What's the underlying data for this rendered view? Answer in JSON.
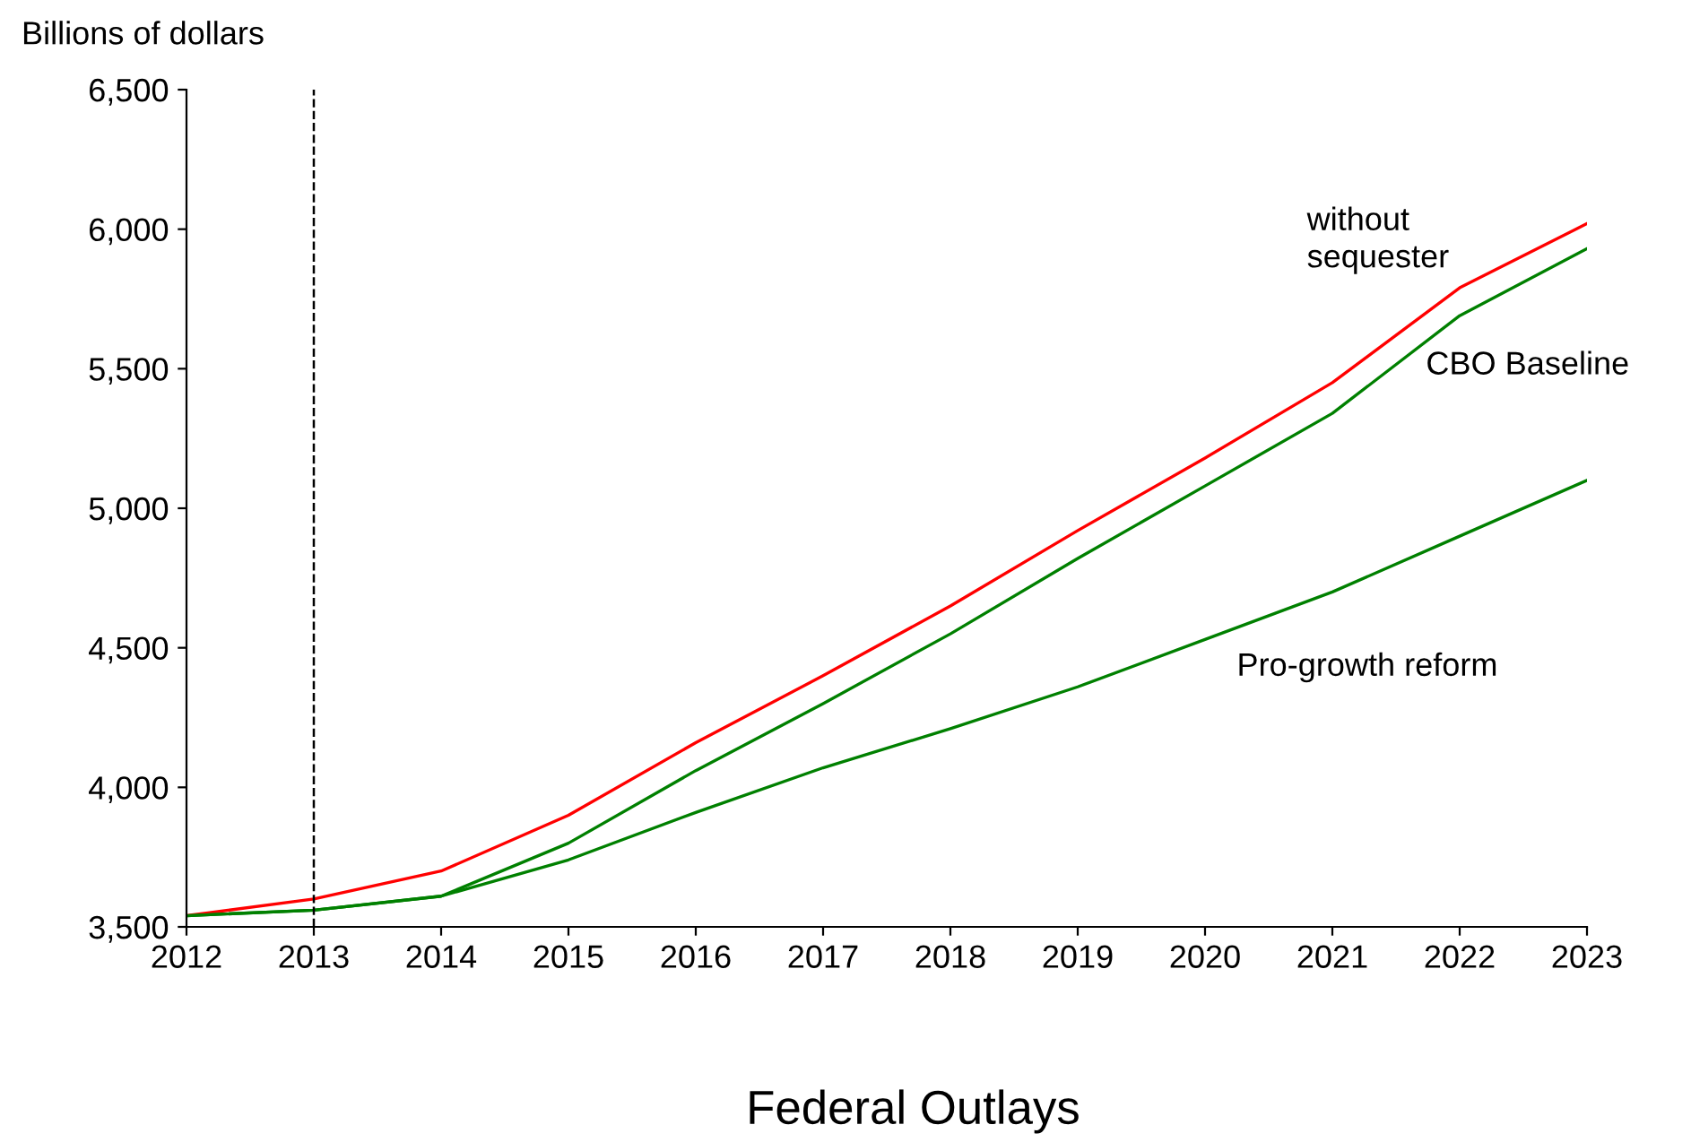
{
  "chart_data": {
    "type": "line",
    "title": "Federal Outlays",
    "ylabel": "Billions of dollars",
    "x": [
      2012,
      2013,
      2014,
      2015,
      2016,
      2017,
      2018,
      2019,
      2020,
      2021,
      2022,
      2023
    ],
    "series": [
      {
        "name": "without\nsequester",
        "color": "#ff0000",
        "values": [
          3540,
          3600,
          3700,
          3900,
          4160,
          4400,
          4650,
          4920,
          5180,
          5450,
          5790,
          6020
        ]
      },
      {
        "name": "CBO Baseline",
        "color": "#008000",
        "values": [
          3540,
          3560,
          3610,
          3800,
          4060,
          4300,
          4550,
          4820,
          5080,
          5340,
          5690,
          5930
        ]
      },
      {
        "name": "Pro-growth reform",
        "color": "#008000",
        "values": [
          3540,
          3560,
          3610,
          3740,
          3910,
          4070,
          4210,
          4360,
          4530,
          4700,
          4900,
          5100
        ]
      }
    ],
    "xlim": [
      2012,
      2023
    ],
    "xticks": [
      2012,
      2013,
      2014,
      2015,
      2016,
      2017,
      2018,
      2019,
      2020,
      2021,
      2022,
      2023
    ],
    "ylim": [
      3500,
      6500
    ],
    "yticks": [
      {
        "value": 3500,
        "label": "3,500"
      },
      {
        "value": 4000,
        "label": "4,000"
      },
      {
        "value": 4500,
        "label": "4,500"
      },
      {
        "value": 5000,
        "label": "5,000"
      },
      {
        "value": 5500,
        "label": "5,500"
      },
      {
        "value": 6000,
        "label": "6,000"
      },
      {
        "value": 6500,
        "label": "6,500"
      }
    ],
    "ref_lines": [
      {
        "axis": "x",
        "value": 2013,
        "color": "#000000",
        "line_style": "dashed"
      }
    ],
    "grid": false,
    "legend": false,
    "marker": "none",
    "line_style": "solid"
  }
}
